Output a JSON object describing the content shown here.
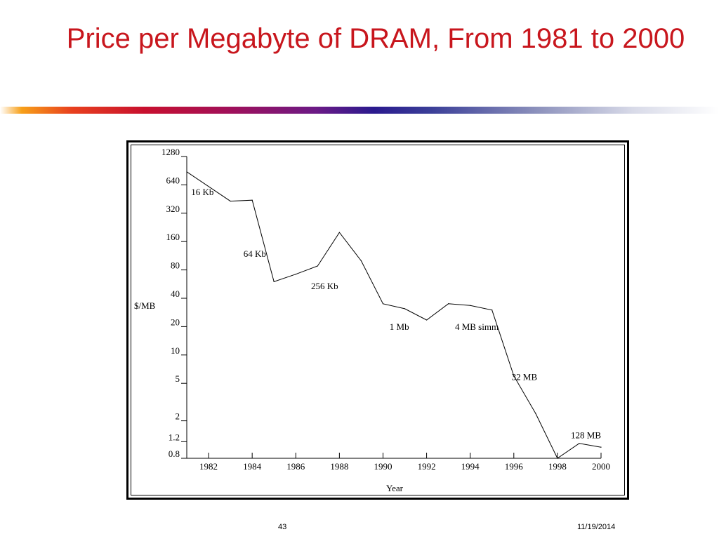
{
  "slide": {
    "title": "Price per Megabyte of DRAM, From 1981 to 2000",
    "page_number": "43",
    "date": "11/19/2014"
  },
  "chart_data": {
    "type": "line",
    "title": "",
    "xlabel": "Year",
    "ylabel": "$/MB",
    "y_scale": "log",
    "xlim": [
      1981,
      2000
    ],
    "ylim": [
      0.8,
      1280
    ],
    "x_ticks": [
      1982,
      1984,
      1986,
      1988,
      1990,
      1992,
      1994,
      1996,
      1998,
      2000
    ],
    "y_ticks": [
      0.8,
      1.2,
      2,
      5,
      10,
      20,
      40,
      80,
      160,
      320,
      640,
      1280
    ],
    "y_tick_labels": [
      "0.8",
      "1.2",
      "2",
      "5",
      "10",
      "20",
      "40",
      "80",
      "160",
      "320",
      "640",
      "1280"
    ],
    "grid": false,
    "x": [
      1981,
      1983,
      1984,
      1985,
      1986,
      1987,
      1988,
      1989,
      1990,
      1991,
      1992,
      1993,
      1994,
      1995,
      1996,
      1997,
      1998,
      1999,
      2000
    ],
    "values": [
      880,
      430,
      440,
      60,
      72,
      88,
      200,
      100,
      35,
      31,
      23.5,
      35,
      33.5,
      30,
      6,
      2.4,
      0.8,
      1.15,
      1.05
    ],
    "annotations": [
      {
        "text": "16 Kb",
        "x": 1981.2,
        "y": 500
      },
      {
        "text": "64 Kb",
        "x": 1983.6,
        "y": 110
      },
      {
        "text": "256 Kb",
        "x": 1986.7,
        "y": 50
      },
      {
        "text": "1 Mb",
        "x": 1990.3,
        "y": 18.5
      },
      {
        "text": "4 MB simm",
        "x": 1993.3,
        "y": 18.5
      },
      {
        "text": "32 MB",
        "x": 1995.9,
        "y": 5.4
      },
      {
        "text": "128 MB",
        "x": 2000,
        "y": 1.3
      }
    ]
  }
}
